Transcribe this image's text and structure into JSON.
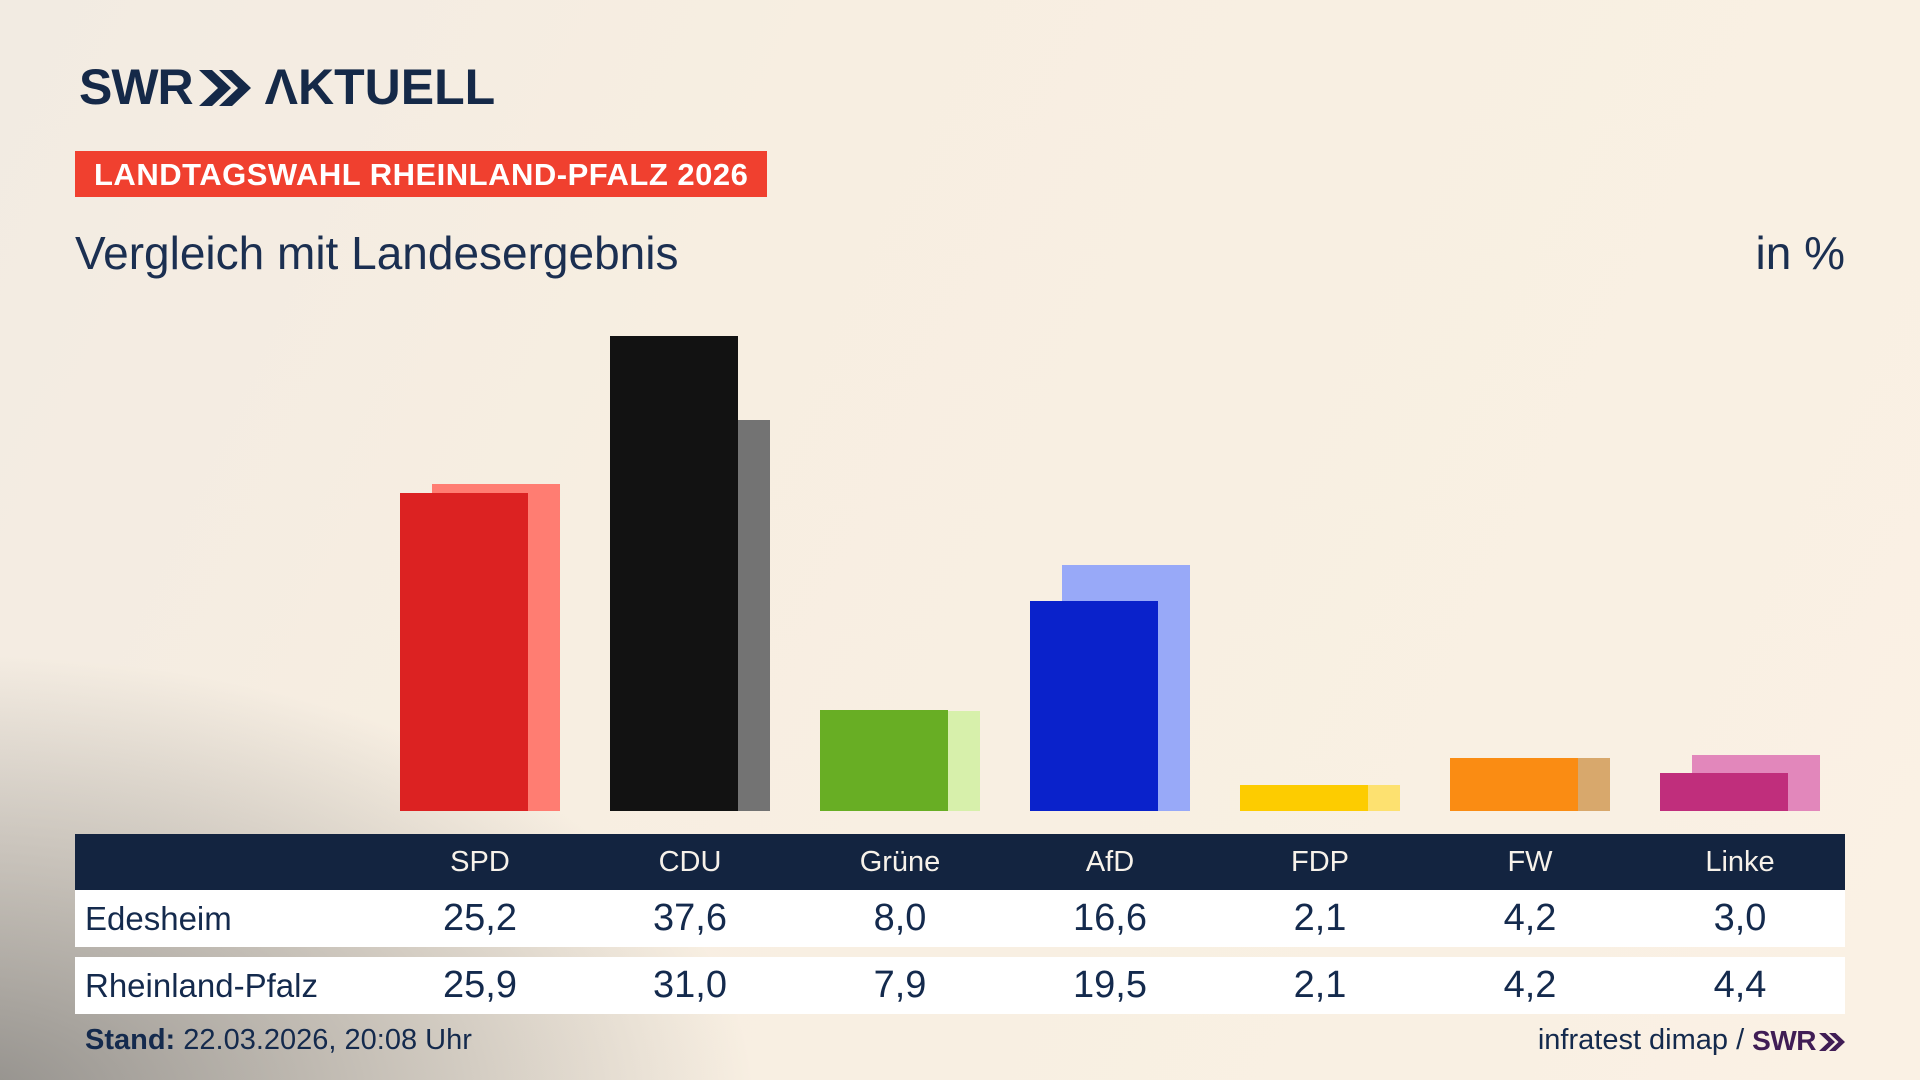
{
  "logo": {
    "brand": "SWR",
    "suffix": "ΛKTUELL"
  },
  "badge": {
    "text": "LANDTAGSWAHL RHEINLAND-PFALZ 2026",
    "bg": "#f0402f"
  },
  "title": {
    "text": "Vergleich mit Landesergebnis",
    "unit": "in %"
  },
  "chart_data": {
    "type": "bar",
    "title": "Vergleich mit Landesergebnis",
    "unit": "in %",
    "categories": [
      "SPD",
      "CDU",
      "Grüne",
      "AfD",
      "FDP",
      "FW",
      "Linke"
    ],
    "category_ids": [
      "spd",
      "cdu",
      "gruene",
      "afd",
      "fdp",
      "fw",
      "linke"
    ],
    "series": [
      {
        "name": "Edesheim",
        "values": [
          25.2,
          37.6,
          8.0,
          16.6,
          2.1,
          4.2,
          3.0
        ]
      },
      {
        "name": "Rheinland-Pfalz",
        "values": [
          25.9,
          31.0,
          7.9,
          19.5,
          2.1,
          4.2,
          4.4
        ]
      }
    ],
    "colors": {
      "edesheim": [
        "#dc2222",
        "#121212",
        "#68ae24",
        "#0a22cb",
        "#fdcc00",
        "#fa8c13",
        "#c02e7c"
      ],
      "rheinland_pfalz": [
        "#ff7d72",
        "#737373",
        "#d7f0ab",
        "#98a9f8",
        "#fde170",
        "#d8a86c",
        "#e287bb"
      ]
    },
    "ylim": [
      0,
      40
    ],
    "grid": false,
    "axes_hidden": true,
    "legend": "table below chart"
  },
  "table": {
    "columns": [
      "SPD",
      "CDU",
      "Grüne",
      "AfD",
      "FDP",
      "FW",
      "Linke"
    ],
    "row_labels": [
      "Edesheim",
      "Rheinland-Pfalz"
    ],
    "rows_display": [
      [
        "25,2",
        "37,6",
        "8,0",
        "16,6",
        "2,1",
        "4,2",
        "3,0"
      ],
      [
        "25,9",
        "31,0",
        "7,9",
        "19,5",
        "2,1",
        "4,2",
        "4,4"
      ]
    ],
    "header_bg": "#132440"
  },
  "footer": {
    "stand_label": "Stand:",
    "stand_value": " 22.03.2026, 20:08 Uhr",
    "source_prefix": "infratest dimap /",
    "source_brand": "SWR"
  }
}
